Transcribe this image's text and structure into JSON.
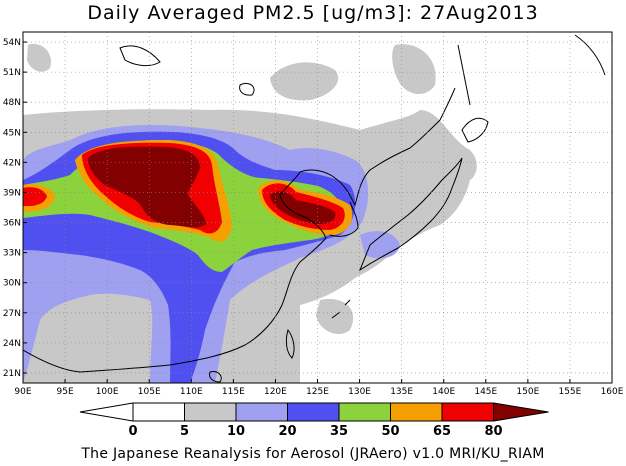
{
  "title": "Daily Averaged PM2.5 [ug/m3]: 27Aug2013",
  "credit": "The Japanese Reanalysis for Aerosol (JRAero) v1.0 MRI/KU_RIAM",
  "map": {
    "lon_range": [
      90,
      160
    ],
    "lat_range": [
      20,
      55
    ],
    "lon_ticks": [
      "90E",
      "95E",
      "100E",
      "105E",
      "110E",
      "115E",
      "120E",
      "125E",
      "130E",
      "135E",
      "140E",
      "145E",
      "150E",
      "155E",
      "160E"
    ],
    "lat_ticks": [
      "21N",
      "24N",
      "27N",
      "30N",
      "33N",
      "36N",
      "39N",
      "42N",
      "45N",
      "48N",
      "51N",
      "54N"
    ],
    "gridlines": "dotted"
  },
  "colorbar": {
    "labels": [
      "0",
      "5",
      "10",
      "20",
      "35",
      "50",
      "65",
      "80"
    ],
    "colors": [
      "#ffffff",
      "#c8c8c8",
      "#a0a0f0",
      "#5050f0",
      "#8cd23c",
      "#f5a000",
      "#f00000",
      "#820000"
    ]
  },
  "levels": {
    "c5": "#c8c8c8",
    "c10": "#a0a0f0",
    "c20": "#5050f0",
    "c35": "#8cd23c",
    "c50": "#f5a000",
    "c65": "#f00000",
    "c80": "#820000"
  }
}
